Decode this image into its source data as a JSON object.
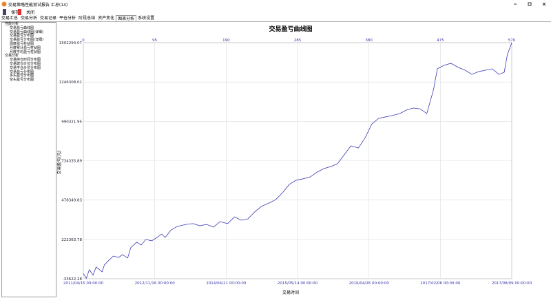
{
  "window": {
    "title": "交易策略性能测试报告 汇总(14)"
  },
  "toolbar": [
    "保存",
    "关闭"
  ],
  "tabs": [
    "交易汇总",
    "交易分析",
    "交易记录",
    "平仓分析",
    "阶段总结",
    "资产变化",
    "图表分析",
    "系统设置"
  ],
  "active_tab": 6,
  "tree": [
    {
      "label": "性能分析",
      "children": [
        "交易盈亏曲线图",
        "交易盈亏曲线图(详细)",
        "交易盈亏分布图",
        "交易盈亏分布图(详细)",
        "周度盈亏柱状图",
        "月度累计盈亏柱状图",
        "月度平均盈亏柱状图"
      ]
    },
    {
      "label": "交易分析",
      "children": [
        "交易持仓时间分布图",
        "交易建仓价位分布图",
        "交易平仓价位分布图",
        "交易盈亏分布图",
        "多头盈亏分布图",
        "空头盈亏分布图"
      ]
    }
  ],
  "chart_data": {
    "type": "line",
    "title": "交易盈亏曲线图",
    "xlabel": "交易时间",
    "ylabel": "交易盈亏(元)",
    "x": [
      0,
      4,
      8,
      13,
      17,
      25,
      28,
      34,
      40,
      47,
      52,
      59,
      63,
      71,
      77,
      83,
      91,
      98,
      104,
      109,
      116,
      123,
      129,
      137,
      146,
      155,
      164,
      173,
      182,
      192,
      201,
      210,
      219,
      228,
      237,
      247,
      256,
      265,
      274,
      283,
      292,
      302,
      311,
      320,
      329,
      338,
      347,
      356,
      366,
      375,
      384,
      393,
      402,
      411,
      421,
      430,
      439,
      448,
      457,
      466,
      471,
      480,
      489,
      499,
      508,
      517,
      526,
      535,
      544,
      553,
      560,
      564,
      570
    ],
    "series": [
      {
        "color": "#3a3ab4",
        "values": [
          0,
          -30000,
          25000,
          -10000,
          43000,
          11000,
          56000,
          87000,
          114000,
          105000,
          123000,
          101000,
          168000,
          204000,
          186000,
          222000,
          213000,
          235000,
          257000,
          235000,
          280000,
          302000,
          311000,
          320000,
          325000,
          311000,
          320000,
          302000,
          338000,
          325000,
          369000,
          347000,
          356000,
          401000,
          437000,
          459000,
          481000,
          526000,
          580000,
          607000,
          616000,
          629000,
          660000,
          683000,
          696000,
          714000,
          772000,
          831000,
          817000,
          884000,
          974000,
          1010000,
          1019000,
          1028000,
          1041000,
          1064000,
          1077000,
          1072000,
          1041000,
          1198000,
          1332000,
          1355000,
          1368000,
          1341000,
          1323000,
          1296000,
          1314000,
          1323000,
          1332000,
          1296000,
          1310000,
          1421000,
          1502000
        ]
      }
    ],
    "xlim": [
      0,
      570
    ],
    "xticks": [
      0,
      95,
      190,
      285,
      380,
      475,
      570
    ],
    "x_date_labels": [
      "2011/04/15 00:00:00",
      "2012/11/16 00:00:00",
      "2014/04/21 00:00:00",
      "2015/05/14 00:00:00",
      "2016/04/26 00:00:00",
      "2017/02/06 00:00:00",
      "2017/08/09 00:00:00"
    ],
    "ylim": [
      -33622.28,
      1502294.07
    ],
    "yticks": [
      -33622.28,
      222363.78,
      478349.83,
      734335.89,
      990321.95,
      1246308.01,
      1502294.07
    ],
    "grid": true
  }
}
